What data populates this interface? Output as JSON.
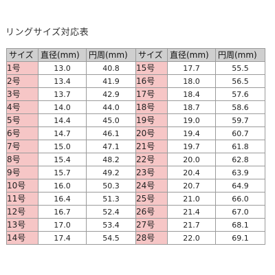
{
  "title": "リングサイズ対応表",
  "headers": [
    "サイズ",
    "直径(mm)",
    "円周(mm)",
    "サイズ",
    "直径(mm)",
    "円周(mm)"
  ],
  "colors": {
    "header_bg": "#cfcfcf",
    "size_bg": "#f6c6c6",
    "border": "#9a9a9a"
  },
  "rows": [
    {
      "left": {
        "size": "1号",
        "diameter": "13.0",
        "circumference": "40.8"
      },
      "right": {
        "size": "15号",
        "diameter": "17.7",
        "circumference": "55.5"
      }
    },
    {
      "left": {
        "size": "2号",
        "diameter": "13.4",
        "circumference": "41.9"
      },
      "right": {
        "size": "16号",
        "diameter": "18.0",
        "circumference": "56.5"
      }
    },
    {
      "left": {
        "size": "3号",
        "diameter": "13.7",
        "circumference": "42.9"
      },
      "right": {
        "size": "17号",
        "diameter": "18.4",
        "circumference": "57.6"
      }
    },
    {
      "left": {
        "size": "4号",
        "diameter": "14.0",
        "circumference": "44.0"
      },
      "right": {
        "size": "18号",
        "diameter": "18.7",
        "circumference": "58.6"
      }
    },
    {
      "left": {
        "size": "5号",
        "diameter": "14.4",
        "circumference": "45.0"
      },
      "right": {
        "size": "19号",
        "diameter": "19.0",
        "circumference": "59.7"
      }
    },
    {
      "left": {
        "size": "6号",
        "diameter": "14.7",
        "circumference": "46.1"
      },
      "right": {
        "size": "20号",
        "diameter": "19.4",
        "circumference": "60.7"
      }
    },
    {
      "left": {
        "size": "7号",
        "diameter": "15.0",
        "circumference": "47.1"
      },
      "right": {
        "size": "21号",
        "diameter": "19.7",
        "circumference": "61.8"
      }
    },
    {
      "left": {
        "size": "8号",
        "diameter": "15.4",
        "circumference": "48.2"
      },
      "right": {
        "size": "22号",
        "diameter": "20.0",
        "circumference": "62.8"
      }
    },
    {
      "left": {
        "size": "9号",
        "diameter": "15.7",
        "circumference": "49.2"
      },
      "right": {
        "size": "23号",
        "diameter": "20.4",
        "circumference": "63.9"
      }
    },
    {
      "left": {
        "size": "10号",
        "diameter": "16.0",
        "circumference": "50.3"
      },
      "right": {
        "size": "24号",
        "diameter": "20.7",
        "circumference": "64.9"
      }
    },
    {
      "left": {
        "size": "11号",
        "diameter": "16.4",
        "circumference": "51.3"
      },
      "right": {
        "size": "25号",
        "diameter": "21.0",
        "circumference": "66.0"
      }
    },
    {
      "left": {
        "size": "12号",
        "diameter": "16.7",
        "circumference": "52.4"
      },
      "right": {
        "size": "26号",
        "diameter": "21.4",
        "circumference": "67.0"
      }
    },
    {
      "left": {
        "size": "13号",
        "diameter": "17.0",
        "circumference": "53.4"
      },
      "right": {
        "size": "27号",
        "diameter": "21.7",
        "circumference": "68.1"
      }
    },
    {
      "left": {
        "size": "14号",
        "diameter": "17.4",
        "circumference": "54.5"
      },
      "right": {
        "size": "28号",
        "diameter": "22.0",
        "circumference": "69.1"
      }
    }
  ]
}
